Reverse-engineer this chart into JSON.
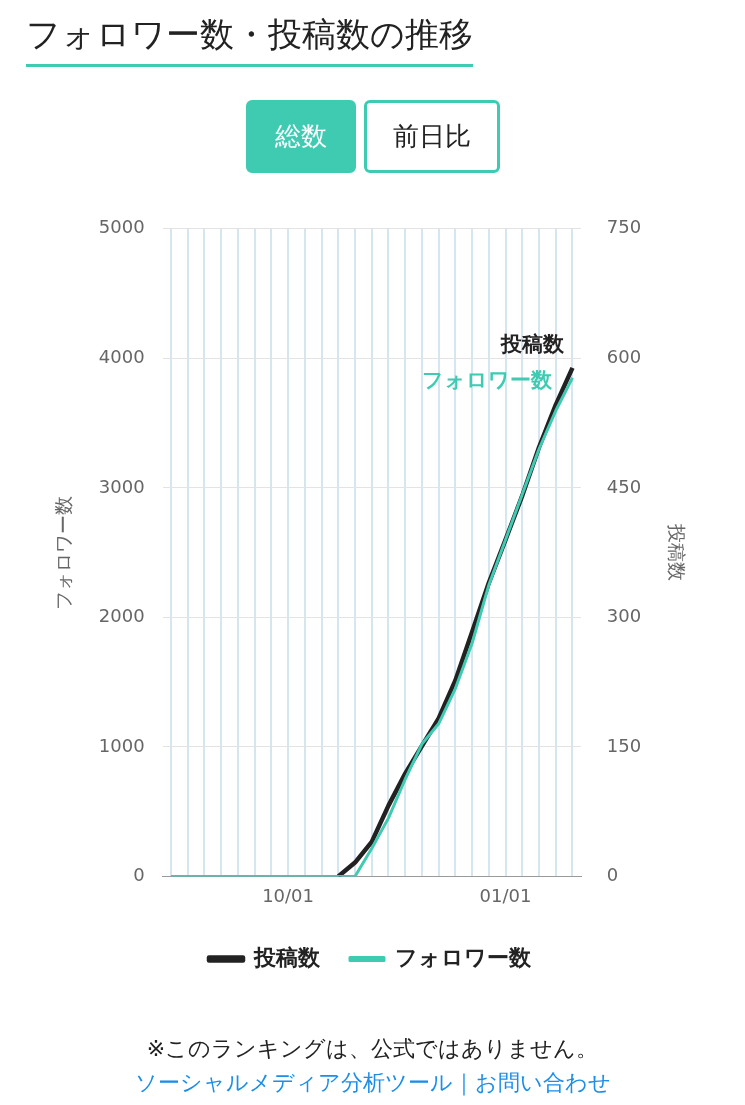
{
  "chart_data": {
    "type": "line",
    "title": "フォロワー数・投稿数の推移",
    "ylabel": "フォロワー数",
    "y2label": "投稿数",
    "annotations": [
      "総数",
      "前日比",
      "※このランキングは、公式ではありません。",
      "ソーシャルメディア分析ツール｜お問い合わせ"
    ],
    "categories": [
      null,
      null,
      null,
      null,
      null,
      null,
      null,
      "10/01",
      null,
      null,
      null,
      null,
      null,
      null,
      null,
      null,
      null,
      null,
      null,
      null,
      "01/01",
      null,
      null,
      null,
      null
    ],
    "ylim": [
      0,
      5000
    ],
    "yticks": [
      0,
      1000,
      2000,
      3000,
      4000,
      5000
    ],
    "y2lim": [
      0,
      750
    ],
    "y2ticks": [
      0,
      150,
      300,
      450,
      600,
      750
    ],
    "grid": true,
    "legend": "bottom",
    "marker": "none",
    "line_style": "solid",
    "series": [
      {
        "name": "投稿数",
        "color": "#222222",
        "axis": "y2",
        "values": [
          null,
          null,
          null,
          null,
          null,
          null,
          null,
          null,
          null,
          null,
          0,
          16,
          40,
          82,
          119,
          151,
          183,
          227,
          283,
          340,
          390,
          441,
          497,
          546,
          589
        ]
      },
      {
        "name": "フォロワー数",
        "color": "#3ecbb2",
        "values": [
          0,
          0,
          0,
          0,
          0,
          0,
          0,
          0,
          0,
          0,
          0,
          0,
          215,
          450,
          750,
          1022,
          1178,
          1450,
          1800,
          2250,
          2600,
          2950,
          3300,
          3595,
          3850
        ]
      }
    ]
  }
}
